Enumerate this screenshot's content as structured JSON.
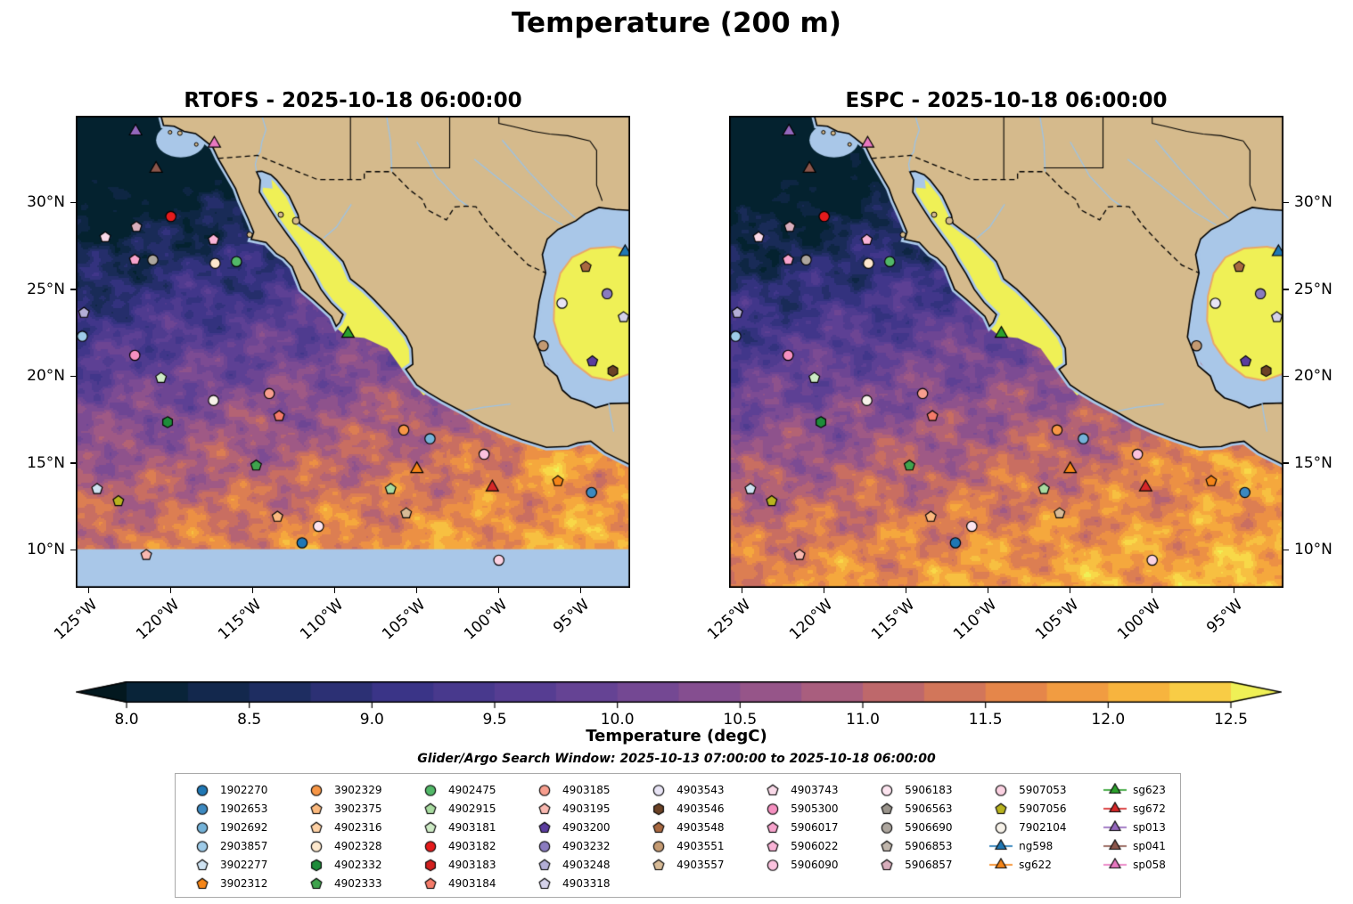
{
  "chart_data": {
    "type": "heatmap",
    "title": "Temperature (200 m)",
    "search_window": "Glider/Argo Search Window: 2025-10-13 07:00:00 to 2025-10-18 06:00:00",
    "panels": [
      {
        "name": "RTOFS",
        "title": "RTOFS - 2025-10-18 06:00:00"
      },
      {
        "name": "ESPC",
        "title": "ESPC - 2025-10-18 06:00:00"
      }
    ],
    "axes": {
      "lat_ticks": [
        {
          "value": 10,
          "label": "10°N"
        },
        {
          "value": 15,
          "label": "15°N"
        },
        {
          "value": 20,
          "label": "20°N"
        },
        {
          "value": 25,
          "label": "25°N"
        },
        {
          "value": 30,
          "label": "30°N"
        }
      ],
      "lon_ticks": [
        {
          "value": 125,
          "label": "125°W"
        },
        {
          "value": 120,
          "label": "120°W"
        },
        {
          "value": 115,
          "label": "115°W"
        },
        {
          "value": 110,
          "label": "110°W"
        },
        {
          "value": 105,
          "label": "105°W"
        },
        {
          "value": 100,
          "label": "100°W"
        },
        {
          "value": 95,
          "label": "95°W"
        }
      ],
      "lon_range_degW": [
        125.8,
        92.0
      ],
      "lat_range_degN": [
        7.8,
        35.0
      ]
    },
    "colorbar": {
      "label": "Temperature (degC)",
      "ticks": [
        "8.0",
        "8.5",
        "9.0",
        "9.5",
        "10.0",
        "10.5",
        "11.0",
        "11.5",
        "12.0",
        "12.5"
      ],
      "vmin": 8.0,
      "vmax": 12.5,
      "stops": [
        [
          0.0,
          "#04222f"
        ],
        [
          0.13,
          "#1c2c5e"
        ],
        [
          0.25,
          "#3a3487"
        ],
        [
          0.38,
          "#5b3f94"
        ],
        [
          0.5,
          "#7c4b93"
        ],
        [
          0.62,
          "#a25a84"
        ],
        [
          0.72,
          "#c86d62"
        ],
        [
          0.82,
          "#ea8a46"
        ],
        [
          0.9,
          "#f7ad3c"
        ],
        [
          1.0,
          "#f8d848"
        ]
      ],
      "under_color": "#03181f",
      "over_color": "#eff056"
    },
    "map_colors": {
      "land": "#d5ba8c",
      "no_data_water": "#a9c7e8",
      "warm_shelf": "#eff056",
      "river": "#9cc3e6"
    },
    "legend": {
      "columns": [
        [
          "1902270",
          "1902653",
          "1902692",
          "2903857",
          "3902277",
          "3902312"
        ],
        [
          "3902329",
          "3902375",
          "4902316",
          "4902328",
          "4902332",
          "4902333"
        ],
        [
          "4902475",
          "4902915",
          "4903181",
          "4903182",
          "4903183",
          "4903184"
        ],
        [
          "4903185",
          "4903195",
          "4903200",
          "4903232",
          "4903248",
          "4903318"
        ],
        [
          "4903543",
          "4903546",
          "4903548",
          "4903551",
          "4903557"
        ],
        [
          "4903743",
          "5905300",
          "5906017",
          "5906022",
          "5906090"
        ],
        [
          "5906183",
          "5906563",
          "5906690",
          "5906853",
          "5906857"
        ],
        [
          "5907053",
          "5907056",
          "7902104",
          "ng598",
          "sg622"
        ],
        [
          "sg623",
          "sg672",
          "sp013",
          "sp041",
          "sp058"
        ]
      ],
      "styles": {
        "1902270": {
          "shape": "circle",
          "color": "#1f77b4"
        },
        "1902653": {
          "shape": "circle",
          "color": "#3d89c0"
        },
        "1902692": {
          "shape": "circle",
          "color": "#74b2d8"
        },
        "2903857": {
          "shape": "circle",
          "color": "#9ecbe8"
        },
        "3902277": {
          "shape": "pentagon",
          "color": "#cfe3f2"
        },
        "3902312": {
          "shape": "pentagon",
          "color": "#f58518"
        },
        "3902329": {
          "shape": "circle",
          "color": "#f79646"
        },
        "3902375": {
          "shape": "pentagon",
          "color": "#fbb97e"
        },
        "4902316": {
          "shape": "pentagon",
          "color": "#fdd1a5"
        },
        "4902328": {
          "shape": "circle",
          "color": "#fde8cd"
        },
        "4902332": {
          "shape": "hexagon",
          "color": "#1e8c3a"
        },
        "4902333": {
          "shape": "pentagon",
          "color": "#3fa34d"
        },
        "4902475": {
          "shape": "circle",
          "color": "#52b868"
        },
        "4902915": {
          "shape": "pentagon",
          "color": "#a8dba0"
        },
        "4903181": {
          "shape": "pentagon",
          "color": "#cdeac5"
        },
        "4903182": {
          "shape": "circle",
          "color": "#e41b1c"
        },
        "4903183": {
          "shape": "hexagon",
          "color": "#d2201f"
        },
        "4903184": {
          "shape": "pentagon",
          "color": "#f47b6a"
        },
        "4903185": {
          "shape": "circle",
          "color": "#f79e8e"
        },
        "4903195": {
          "shape": "pentagon",
          "color": "#f8b8b0"
        },
        "4903200": {
          "shape": "pentagon",
          "color": "#5b3d9e"
        },
        "4903232": {
          "shape": "circle",
          "color": "#8a7bbf"
        },
        "4903248": {
          "shape": "pentagon",
          "color": "#b3aed6"
        },
        "4903318": {
          "shape": "pentagon",
          "color": "#d5d2ea"
        },
        "4903543": {
          "shape": "circle",
          "color": "#e8e4f5"
        },
        "4903546": {
          "shape": "hexagon",
          "color": "#6b4226"
        },
        "4903548": {
          "shape": "pentagon",
          "color": "#a86840"
        },
        "4903551": {
          "shape": "circle",
          "color": "#c49a72"
        },
        "4903557": {
          "shape": "pentagon",
          "color": "#d8bb97"
        },
        "4903743": {
          "shape": "pentagon",
          "color": "#f9d9e8"
        },
        "5905300": {
          "shape": "circle",
          "color": "#f590c0"
        },
        "5906017": {
          "shape": "pentagon",
          "color": "#f7a3cc"
        },
        "5906022": {
          "shape": "pentagon",
          "color": "#f9b3d6"
        },
        "5906090": {
          "shape": "circle",
          "color": "#fbc2de"
        },
        "5906183": {
          "shape": "circle",
          "color": "#fce4ef"
        },
        "5906563": {
          "shape": "pentagon",
          "color": "#9a948c"
        },
        "5906690": {
          "shape": "circle",
          "color": "#ada69e"
        },
        "5906853": {
          "shape": "pentagon",
          "color": "#c0b6ac"
        },
        "5906857": {
          "shape": "pentagon",
          "color": "#d9aebc"
        },
        "5907053": {
          "shape": "circle",
          "color": "#fbd2e2"
        },
        "5907056": {
          "shape": "pentagon",
          "color": "#b8b31f"
        },
        "7902104": {
          "shape": "circle",
          "color": "#f7f2e9"
        },
        "ng598": {
          "shape": "triangle",
          "color": "#1f77b4",
          "line": true
        },
        "sg622": {
          "shape": "triangle",
          "color": "#f58518",
          "line": true
        },
        "sg623": {
          "shape": "triangle",
          "color": "#2ca02c",
          "line": true
        },
        "sg672": {
          "shape": "triangle",
          "color": "#d62728",
          "line": true
        },
        "sp013": {
          "shape": "triangle",
          "color": "#9467bd",
          "line": true
        },
        "sp041": {
          "shape": "triangle",
          "color": "#8c564b",
          "line": true
        },
        "sp058": {
          "shape": "triangle",
          "color": "#e878c0",
          "line": true
        }
      }
    },
    "markers": [
      {
        "id": "sp013",
        "lon": 122.15,
        "lat": 34.1
      },
      {
        "id": "sp058",
        "lon": 117.35,
        "lat": 33.4
      },
      {
        "id": "sp041",
        "lon": 120.9,
        "lat": 31.95
      },
      {
        "id": "4903182",
        "lon": 120.0,
        "lat": 29.2
      },
      {
        "id": "5906857",
        "lon": 122.1,
        "lat": 28.6
      },
      {
        "id": "4903743",
        "lon": 124.0,
        "lat": 28.0
      },
      {
        "id": "5906017",
        "lon": 122.2,
        "lat": 26.7
      },
      {
        "id": "5906690",
        "lon": 121.1,
        "lat": 26.7
      },
      {
        "id": "5906022",
        "lon": 117.4,
        "lat": 27.85
      },
      {
        "id": "4902328",
        "lon": 117.3,
        "lat": 26.5
      },
      {
        "id": "4902475",
        "lon": 116.0,
        "lat": 26.6
      },
      {
        "id": "4903248",
        "lon": 125.3,
        "lat": 23.65
      },
      {
        "id": "2903857",
        "lon": 125.4,
        "lat": 22.3
      },
      {
        "id": "5905300",
        "lon": 122.2,
        "lat": 21.2
      },
      {
        "id": "4903181",
        "lon": 120.6,
        "lat": 19.9
      },
      {
        "id": "7902104",
        "lon": 117.4,
        "lat": 18.6
      },
      {
        "id": "4903185",
        "lon": 114.0,
        "lat": 19.0
      },
      {
        "id": "4903184",
        "lon": 113.4,
        "lat": 17.7
      },
      {
        "id": "4902332",
        "lon": 120.2,
        "lat": 17.35
      },
      {
        "id": "sg623",
        "lon": 109.2,
        "lat": 22.45
      },
      {
        "id": "3902329",
        "lon": 105.8,
        "lat": 16.9
      },
      {
        "id": "1902692",
        "lon": 104.2,
        "lat": 16.4
      },
      {
        "id": "5906090",
        "lon": 100.9,
        "lat": 15.5
      },
      {
        "id": "4902333",
        "lon": 114.8,
        "lat": 14.85
      },
      {
        "id": "sg622",
        "lon": 105.0,
        "lat": 14.65
      },
      {
        "id": "3902277",
        "lon": 124.5,
        "lat": 13.5
      },
      {
        "id": "5907056",
        "lon": 123.2,
        "lat": 12.8
      },
      {
        "id": "4902915",
        "lon": 106.6,
        "lat": 13.5
      },
      {
        "id": "sg672",
        "lon": 100.4,
        "lat": 13.6
      },
      {
        "id": "3902312",
        "lon": 96.4,
        "lat": 13.95
      },
      {
        "id": "1902653",
        "lon": 94.35,
        "lat": 13.3
      },
      {
        "id": "4903557",
        "lon": 105.65,
        "lat": 12.1
      },
      {
        "id": "3902375",
        "lon": 113.5,
        "lat": 11.9
      },
      {
        "id": "5906183",
        "lon": 111.0,
        "lat": 11.35
      },
      {
        "id": "1902270",
        "lon": 112.0,
        "lat": 10.4
      },
      {
        "id": "4903195",
        "lon": 121.5,
        "lat": 9.7
      },
      {
        "id": "5907053",
        "lon": 100.0,
        "lat": 9.4
      },
      {
        "id": "4903548",
        "lon": 94.7,
        "lat": 26.3
      },
      {
        "id": "4903543",
        "lon": 96.15,
        "lat": 24.2
      },
      {
        "id": "4903232",
        "lon": 93.4,
        "lat": 24.75
      },
      {
        "id": "4903200",
        "lon": 94.3,
        "lat": 20.85
      },
      {
        "id": "4903546",
        "lon": 93.05,
        "lat": 20.3
      },
      {
        "id": "4903551",
        "lon": 97.3,
        "lat": 21.75
      },
      {
        "id": "4903318",
        "lon": 92.4,
        "lat": 23.4
      },
      {
        "id": "ng598",
        "lon": 92.3,
        "lat": 27.15
      }
    ]
  }
}
